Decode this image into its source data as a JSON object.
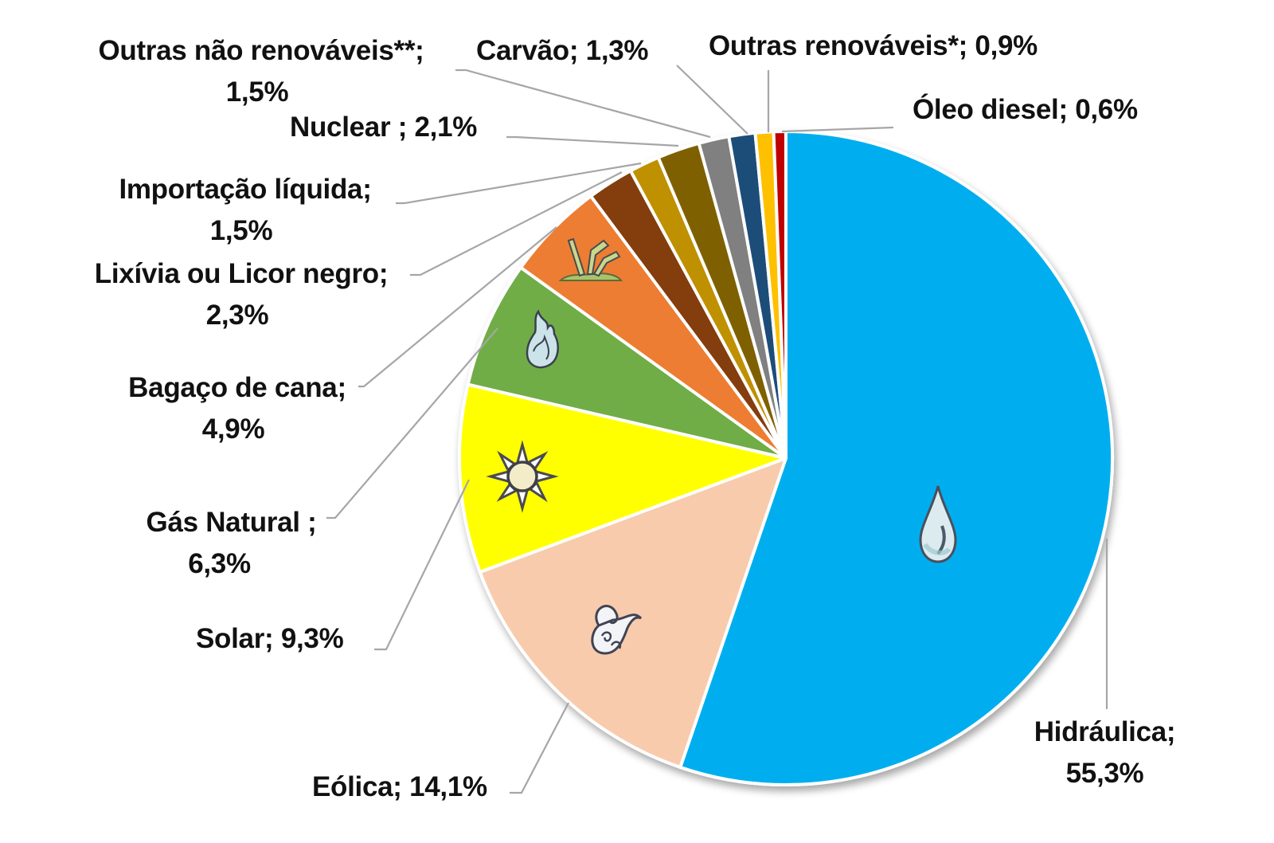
{
  "chart_data": {
    "type": "pie",
    "title": "",
    "start_angle_deg": 0,
    "direction": "clockwise",
    "slices": [
      {
        "label": "Hidráulica",
        "value": 55.3,
        "display": "55,3%",
        "color": "#00AEEF",
        "icon": "water-drop-icon"
      },
      {
        "label": "Eólica",
        "value": 14.1,
        "display": "14,1%",
        "color": "#F8CBAD",
        "icon": "wind-icon"
      },
      {
        "label": "Solar",
        "value": 9.3,
        "display": "9,3%",
        "color": "#FFFF00",
        "icon": "sun-icon"
      },
      {
        "label": "Gás Natural",
        "value": 6.3,
        "display": "6,3%",
        "color": "#70AD47",
        "icon": "flame-icon"
      },
      {
        "label": "Bagaço de cana",
        "value": 4.9,
        "display": "4,9%",
        "color": "#ED7D31",
        "icon": "sugarcane-icon"
      },
      {
        "label": "Lixívia ou Licor negro",
        "value": 2.3,
        "display": "2,3%",
        "color": "#843C0C",
        "icon": ""
      },
      {
        "label": "Importação líquida",
        "value": 1.5,
        "display": "1,5%",
        "color": "#BF9000",
        "icon": ""
      },
      {
        "label": "Nuclear",
        "value": 2.1,
        "display": "2,1%",
        "color": "#7F6000",
        "icon": ""
      },
      {
        "label": "Outras não renováveis**",
        "value": 1.5,
        "display": "1,5%",
        "color": "#808080",
        "icon": ""
      },
      {
        "label": "Carvão",
        "value": 1.3,
        "display": "1,3%",
        "color": "#1F4E79",
        "icon": ""
      },
      {
        "label": "Outras renováveis*",
        "value": 0.9,
        "display": "0,9%",
        "color": "#FFC000",
        "icon": ""
      },
      {
        "label": "Óleo diesel",
        "value": 0.6,
        "display": "0,6%",
        "color": "#C00000",
        "icon": ""
      }
    ],
    "legend": "none (data labels with leader lines)"
  },
  "labels": {
    "hidraulica": {
      "line1": "Hidráulica;",
      "line2": "55,3%"
    },
    "eolica": {
      "line1": "Eólica; 14,1%"
    },
    "solar": {
      "line1": "Solar; 9,3%"
    },
    "gas_natural": {
      "line1": "Gás Natural ;",
      "line2": "6,3%"
    },
    "bagaco": {
      "line1": "Bagaço de cana;",
      "line2": "4,9%"
    },
    "lixivia": {
      "line1": "Lixívia ou Licor negro;",
      "line2": "2,3%"
    },
    "importacao": {
      "line1": "Importação líquida;",
      "line2": "1,5%"
    },
    "nuclear": {
      "line1": "Nuclear ; 2,1%"
    },
    "outras_nao_renovaveis": {
      "line1": "Outras não renováveis**;",
      "line2": "1,5%"
    },
    "carvao": {
      "line1": "Carvão; 1,3%"
    },
    "outras_renovaveis": {
      "line1": "Outras renováveis*; 0,9%"
    },
    "oleo_diesel": {
      "line1": "Óleo diesel; 0,6%"
    }
  }
}
